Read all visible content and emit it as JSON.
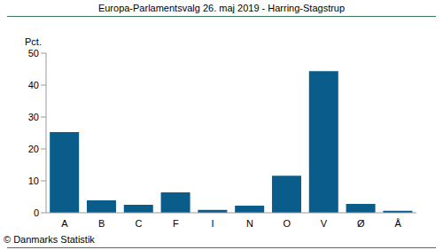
{
  "chart_data": {
    "type": "bar",
    "title": "Europa-Parlamentsvalg 26. maj 2019 - Harring-Stagstrup",
    "y_label": "Pct.",
    "source": "© Danmarks Statistik",
    "categories": [
      "A",
      "B",
      "C",
      "F",
      "I",
      "N",
      "O",
      "V",
      "Ø",
      "Å"
    ],
    "values": [
      25.3,
      3.9,
      2.5,
      6.4,
      0.9,
      2.2,
      11.6,
      44.4,
      2.8,
      0.6
    ],
    "color": "#0a5c8a",
    "ylim": [
      0,
      50
    ],
    "yticks": [
      0,
      10,
      20,
      30,
      40,
      50
    ],
    "grid": false
  }
}
